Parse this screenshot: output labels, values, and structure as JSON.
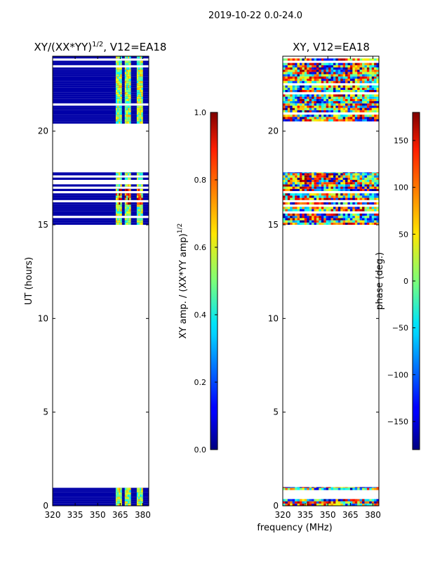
{
  "figure": {
    "suptitle": "2019-10-22 0.0-24.0",
    "xlabel_shared": "frequency (MHz)"
  },
  "chart_data": [
    {
      "type": "heatmap",
      "title": "XY/(XX*YY)",
      "title_sup": "1/2",
      "title_suffix": ", V12=EA18",
      "xlabel": "",
      "ylabel": "UT (hours)",
      "xlim": [
        320,
        384
      ],
      "ylim": [
        0,
        24
      ],
      "xticks": [
        320,
        335,
        350,
        365,
        380
      ],
      "yticks": [
        0,
        5,
        10,
        15,
        20
      ],
      "colorbar": {
        "label": "XY amp. / (XX*YY amp)",
        "label_sup": "1/2",
        "range": [
          0.0,
          1.0
        ],
        "ticks": [
          "0.0",
          "0.2",
          "0.4",
          "0.6",
          "0.8",
          "1.0"
        ],
        "colormap": "jet"
      },
      "data_bands_ut": [
        [
          0.0,
          1.0
        ],
        [
          15.0,
          17.8
        ],
        [
          20.4,
          24.0
        ]
      ],
      "background_value": 0.0,
      "hot_channel_mhz": [
        [
          362,
          366
        ],
        [
          368,
          372
        ],
        [
          376,
          380
        ]
      ]
    },
    {
      "type": "heatmap",
      "title": "XY, V12=EA18",
      "xlabel": "",
      "ylabel": "",
      "xlim": [
        320,
        384
      ],
      "ylim": [
        0,
        24
      ],
      "xticks": [
        320,
        335,
        350,
        365,
        380
      ],
      "yticks": [
        0,
        5,
        10,
        15,
        20
      ],
      "colorbar": {
        "label": "phase (deg.)",
        "range": [
          -180,
          180
        ],
        "ticks": [
          "150",
          "100",
          "50",
          "0",
          "−50",
          "−100",
          "−150"
        ],
        "tick_values": [
          150,
          100,
          50,
          0,
          -50,
          -100,
          -150
        ],
        "colormap": "jet"
      },
      "data_bands_ut": [
        [
          0.0,
          1.0
        ],
        [
          15.0,
          17.8
        ],
        [
          20.4,
          24.0
        ]
      ]
    }
  ]
}
